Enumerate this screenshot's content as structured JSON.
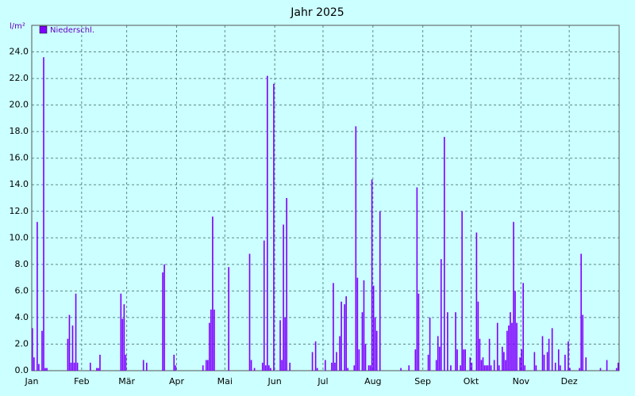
{
  "chart_data": {
    "type": "bar",
    "title": "Jahr 2025",
    "ylabel": "l/m²",
    "series": [
      {
        "name": "Niederschl.",
        "color": "#7f00ff",
        "values": [
          3.2,
          1.0,
          0,
          11.2,
          0.5,
          0,
          3.0,
          23.6,
          0.2,
          0.2,
          0,
          0,
          0,
          0,
          0,
          0,
          0,
          0,
          0,
          0,
          0,
          0,
          2.4,
          4.2,
          0.6,
          3.4,
          0.6,
          5.8,
          0.6,
          0,
          0,
          0,
          0,
          0,
          0,
          0,
          0.6,
          0,
          0,
          0,
          0.2,
          0.2,
          1.2,
          0,
          0,
          0,
          0,
          0,
          0,
          0,
          0,
          0,
          0,
          0,
          0,
          5.8,
          3.9,
          5.0,
          1.2,
          0,
          0,
          0,
          0,
          0,
          0,
          0,
          0,
          0,
          0,
          0.8,
          0,
          0.6,
          0,
          0,
          0,
          0,
          0,
          0,
          0,
          0,
          0,
          7.4,
          8.0,
          0,
          0,
          0,
          0,
          0,
          1.2,
          0.4,
          0,
          0,
          0,
          0,
          0,
          0,
          0,
          0,
          0,
          0,
          0,
          0,
          0,
          0,
          0,
          0,
          0.4,
          0,
          0.8,
          0.8,
          3.6,
          4.6,
          11.6,
          4.6,
          0,
          0,
          0,
          0,
          0,
          0,
          0,
          0,
          7.8,
          0,
          0,
          0,
          0,
          0,
          0,
          0,
          0,
          0,
          0,
          0,
          0,
          8.8,
          0.8,
          0,
          0.2,
          0,
          0,
          0,
          0,
          0.6,
          9.8,
          0.4,
          22.2,
          0.4,
          0.2,
          0,
          21.6,
          0,
          0,
          0,
          3.8,
          0.8,
          11.0,
          4.0,
          13.0,
          0,
          0.6,
          0,
          0,
          0,
          0,
          0,
          0,
          0,
          0,
          0,
          0,
          0,
          0,
          0,
          1.4,
          0,
          2.2,
          0.2,
          0,
          0,
          0,
          0,
          0.8,
          0,
          0,
          0,
          0.6,
          6.6,
          0.6,
          1.4,
          0,
          2.6,
          5.2,
          0,
          5.0,
          5.6,
          0.2,
          0,
          0,
          0,
          0.4,
          18.4,
          7.0,
          1.6,
          0,
          4.4,
          6.8,
          2.0,
          0,
          0.4,
          0.4,
          14.4,
          6.4,
          4.0,
          3.0,
          0,
          12.0,
          0,
          0,
          0,
          0,
          0,
          0,
          0,
          0,
          0,
          0,
          0,
          0,
          0.2,
          0,
          0,
          0,
          0,
          0.4,
          0,
          0,
          0,
          1.6,
          13.8,
          5.8,
          0,
          0,
          0,
          0,
          0,
          1.2,
          4.0,
          0,
          0,
          0,
          0.8,
          2.6,
          1.8,
          8.4,
          0,
          17.6,
          0,
          4.4,
          0,
          0.4,
          0,
          0,
          4.4,
          1.6,
          0,
          0.4,
          12.0,
          1.6,
          1.6,
          0,
          0,
          1.0,
          0.6,
          0,
          0,
          10.4,
          5.2,
          2.4,
          0.8,
          1.0,
          0.4,
          0.4,
          0.4,
          2.4,
          0.4,
          0,
          0.8,
          0,
          3.6,
          0.4,
          0,
          1.8,
          1.4,
          0.8,
          3.0,
          3.4,
          4.4,
          3.6,
          11.2,
          6.0,
          3.6,
          0,
          1.0,
          1.6,
          6.6,
          0.4,
          0,
          0,
          0,
          0,
          0,
          1.4,
          0.4,
          0,
          0,
          0,
          2.6,
          1.2,
          0,
          1.4,
          2.4,
          0,
          3.2,
          0,
          0.6,
          0,
          1.6,
          0.4,
          0,
          0,
          1.2,
          0,
          2.2,
          0.2,
          0,
          0,
          0,
          0,
          0,
          0.2,
          8.8,
          4.2,
          0,
          1.0,
          0,
          0,
          0,
          0,
          0,
          0,
          0,
          0,
          0.2,
          0,
          0,
          0,
          0.8,
          0,
          0,
          0,
          0,
          0,
          0.2,
          0.6
        ]
      }
    ],
    "xlim": [
      1,
      366
    ],
    "xticks": [
      {
        "value": 1,
        "label": "Jan"
      },
      {
        "value": 32,
        "label": "Feb"
      },
      {
        "value": 60,
        "label": "Mär"
      },
      {
        "value": 91,
        "label": "Apr"
      },
      {
        "value": 121,
        "label": "Mai"
      },
      {
        "value": 152,
        "label": "Jun"
      },
      {
        "value": 182,
        "label": "Jul"
      },
      {
        "value": 213,
        "label": "Aug"
      },
      {
        "value": 244,
        "label": "Sep"
      },
      {
        "value": 274,
        "label": "Okt"
      },
      {
        "value": 305,
        "label": "Nov"
      },
      {
        "value": 335,
        "label": "Dez"
      }
    ],
    "ylim": [
      0,
      26
    ],
    "yticks": [
      {
        "value": 0,
        "label": "0.0"
      },
      {
        "value": 2,
        "label": "2.0"
      },
      {
        "value": 4,
        "label": "4.0"
      },
      {
        "value": 6,
        "label": "6.0"
      },
      {
        "value": 8,
        "label": "8.0"
      },
      {
        "value": 10,
        "label": "10.0"
      },
      {
        "value": 12,
        "label": "12.0"
      },
      {
        "value": 14,
        "label": "14.0"
      },
      {
        "value": 16,
        "label": "16.0"
      },
      {
        "value": 18,
        "label": "18.0"
      },
      {
        "value": 20,
        "label": "20.0"
      },
      {
        "value": 22,
        "label": "22.0"
      },
      {
        "value": 24,
        "label": "24.0"
      }
    ],
    "grid": true,
    "legend": "top-left"
  }
}
